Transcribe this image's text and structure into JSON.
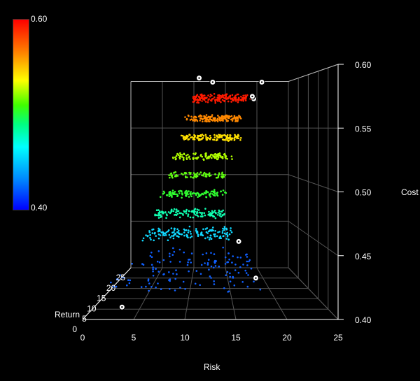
{
  "chart_data": {
    "type": "scatter3d",
    "axes": {
      "x": {
        "label": "Risk",
        "range": [
          0,
          25
        ],
        "ticks": [
          "0",
          "5",
          "10",
          "15",
          "20",
          "25"
        ]
      },
      "y": {
        "label": "Return",
        "range": [
          0,
          25
        ],
        "ticks": [
          "0",
          "5",
          "10",
          "15",
          "20",
          "25"
        ]
      },
      "z": {
        "label": "Cost",
        "range": [
          0.4,
          0.6
        ],
        "ticks": [
          "0.40",
          "0.45",
          "0.50",
          "0.55",
          "0.60"
        ]
      }
    },
    "colorbar": {
      "min_label": "0.40",
      "max_label": "0.60",
      "colormap": "jet"
    },
    "grid": true,
    "series": [
      {
        "cost": 0.42,
        "color": "#1060ff",
        "risk_range": [
          2,
          18
        ],
        "return_range": [
          2,
          26
        ],
        "count": 140
      },
      {
        "cost": 0.44,
        "color": "#10d8ff",
        "risk_range": [
          3,
          16
        ],
        "return_range": [
          20,
          26
        ],
        "count": 150
      },
      {
        "cost": 0.46,
        "color": "#10ffb0",
        "risk_range": [
          4,
          15
        ],
        "return_range": [
          22,
          26
        ],
        "count": 130
      },
      {
        "cost": 0.48,
        "color": "#30ff30",
        "risk_range": [
          5,
          15
        ],
        "return_range": [
          23,
          26
        ],
        "count": 110
      },
      {
        "cost": 0.5,
        "color": "#60ff10",
        "risk_range": [
          6,
          15
        ],
        "return_range": [
          24,
          25
        ],
        "count": 80
      },
      {
        "cost": 0.52,
        "color": "#b0ff00",
        "risk_range": [
          7,
          16
        ],
        "return_range": [
          22,
          26
        ],
        "count": 110
      },
      {
        "cost": 0.54,
        "color": "#ffe000",
        "risk_range": [
          8,
          17
        ],
        "return_range": [
          20,
          26
        ],
        "count": 130
      },
      {
        "cost": 0.56,
        "color": "#ff8800",
        "risk_range": [
          9,
          17
        ],
        "return_range": [
          18,
          26
        ],
        "count": 150
      },
      {
        "cost": 0.58,
        "color": "#ff1a00",
        "risk_range": [
          10,
          18
        ],
        "return_range": [
          16,
          26
        ],
        "count": 170
      }
    ],
    "highlight_points": [
      {
        "risk": 3,
        "return": 6,
        "cost": 0.4
      },
      {
        "risk": 17,
        "return": 24,
        "cost": 0.43
      },
      {
        "risk": 19,
        "return": 20,
        "cost": 0.4
      },
      {
        "risk": 11,
        "return": 20,
        "cost": 0.6
      },
      {
        "risk": 13,
        "return": 26,
        "cost": 0.6
      },
      {
        "risk": 19,
        "return": 22,
        "cost": 0.58
      },
      {
        "risk": 18,
        "return": 16,
        "cost": 0.58
      },
      {
        "risk": 21,
        "return": 26,
        "cost": 0.6
      }
    ]
  }
}
